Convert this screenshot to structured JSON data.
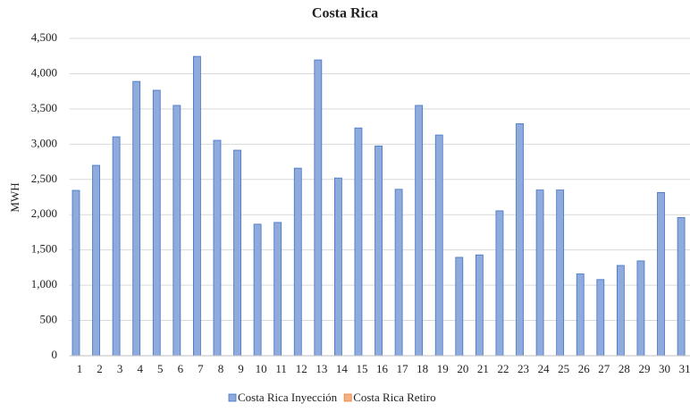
{
  "chart_data": {
    "type": "bar",
    "title": "Costa  Rica",
    "y_label": "MWH",
    "categories": [
      "1",
      "2",
      "3",
      "4",
      "5",
      "6",
      "7",
      "8",
      "9",
      "10",
      "11",
      "12",
      "13",
      "14",
      "15",
      "16",
      "17",
      "18",
      "19",
      "20",
      "21",
      "22",
      "23",
      "24",
      "25",
      "26",
      "27",
      "28",
      "29",
      "30",
      "31"
    ],
    "series": [
      {
        "name": "Costa Rica Inyección",
        "color": "#8faadc",
        "values": [
          2345,
          2700,
          3105,
          3890,
          3765,
          3550,
          4245,
          3055,
          2915,
          1865,
          1890,
          2660,
          4195,
          2520,
          3230,
          2975,
          2360,
          3550,
          3130,
          1395,
          1430,
          2055,
          3290,
          2350,
          2350,
          1160,
          1080,
          1280,
          1345,
          2315,
          1960
        ]
      },
      {
        "name": "Costa Rica Retiro",
        "color": "#f4b183",
        "values": [
          0,
          0,
          0,
          0,
          0,
          0,
          0,
          0,
          0,
          0,
          0,
          0,
          0,
          0,
          0,
          0,
          0,
          0,
          0,
          0,
          0,
          0,
          0,
          0,
          0,
          0,
          0,
          0,
          0,
          0,
          0
        ]
      }
    ],
    "ylim": [
      0,
      4500
    ],
    "yticks": [
      0,
      500,
      {
        "value": 1000,
        "label": "1,000"
      },
      {
        "value": 1500,
        "label": "1,500"
      },
      {
        "value": 2000,
        "label": "2,000"
      },
      {
        "value": 2500,
        "label": "2,500"
      },
      {
        "value": 3000,
        "label": "3,000"
      },
      {
        "value": 3500,
        "label": "3,500"
      },
      {
        "value": 4000,
        "label": "4,000"
      },
      {
        "value": 4500,
        "label": "4,500"
      }
    ],
    "grid": true,
    "legend": "bottom"
  }
}
